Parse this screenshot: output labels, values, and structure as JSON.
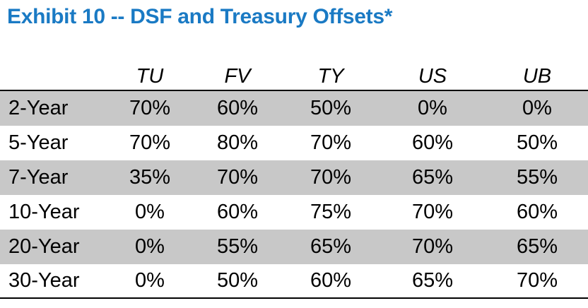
{
  "title": "Exhibit 10 -- DSF and Treasury Offsets*",
  "colors": {
    "title": "#1a7ac4",
    "shaded_row": "#c8c8c8",
    "rule": "#000000"
  },
  "chart_data": {
    "type": "table",
    "title": "Exhibit 10 -- DSF and Treasury Offsets*",
    "columns": [
      "TU",
      "FV",
      "TY",
      "US",
      "UB"
    ],
    "rows": [
      {
        "label": "2-Year",
        "values": [
          "70%",
          "60%",
          "50%",
          "0%",
          "0%"
        ]
      },
      {
        "label": "5-Year",
        "values": [
          "70%",
          "80%",
          "70%",
          "60%",
          "50%"
        ]
      },
      {
        "label": "7-Year",
        "values": [
          "35%",
          "70%",
          "70%",
          "65%",
          "55%"
        ]
      },
      {
        "label": "10-Year",
        "values": [
          "0%",
          "60%",
          "75%",
          "70%",
          "60%"
        ]
      },
      {
        "label": "20-Year",
        "values": [
          "0%",
          "55%",
          "65%",
          "70%",
          "65%"
        ]
      },
      {
        "label": "30-Year",
        "values": [
          "0%",
          "50%",
          "60%",
          "65%",
          "70%"
        ]
      }
    ]
  }
}
